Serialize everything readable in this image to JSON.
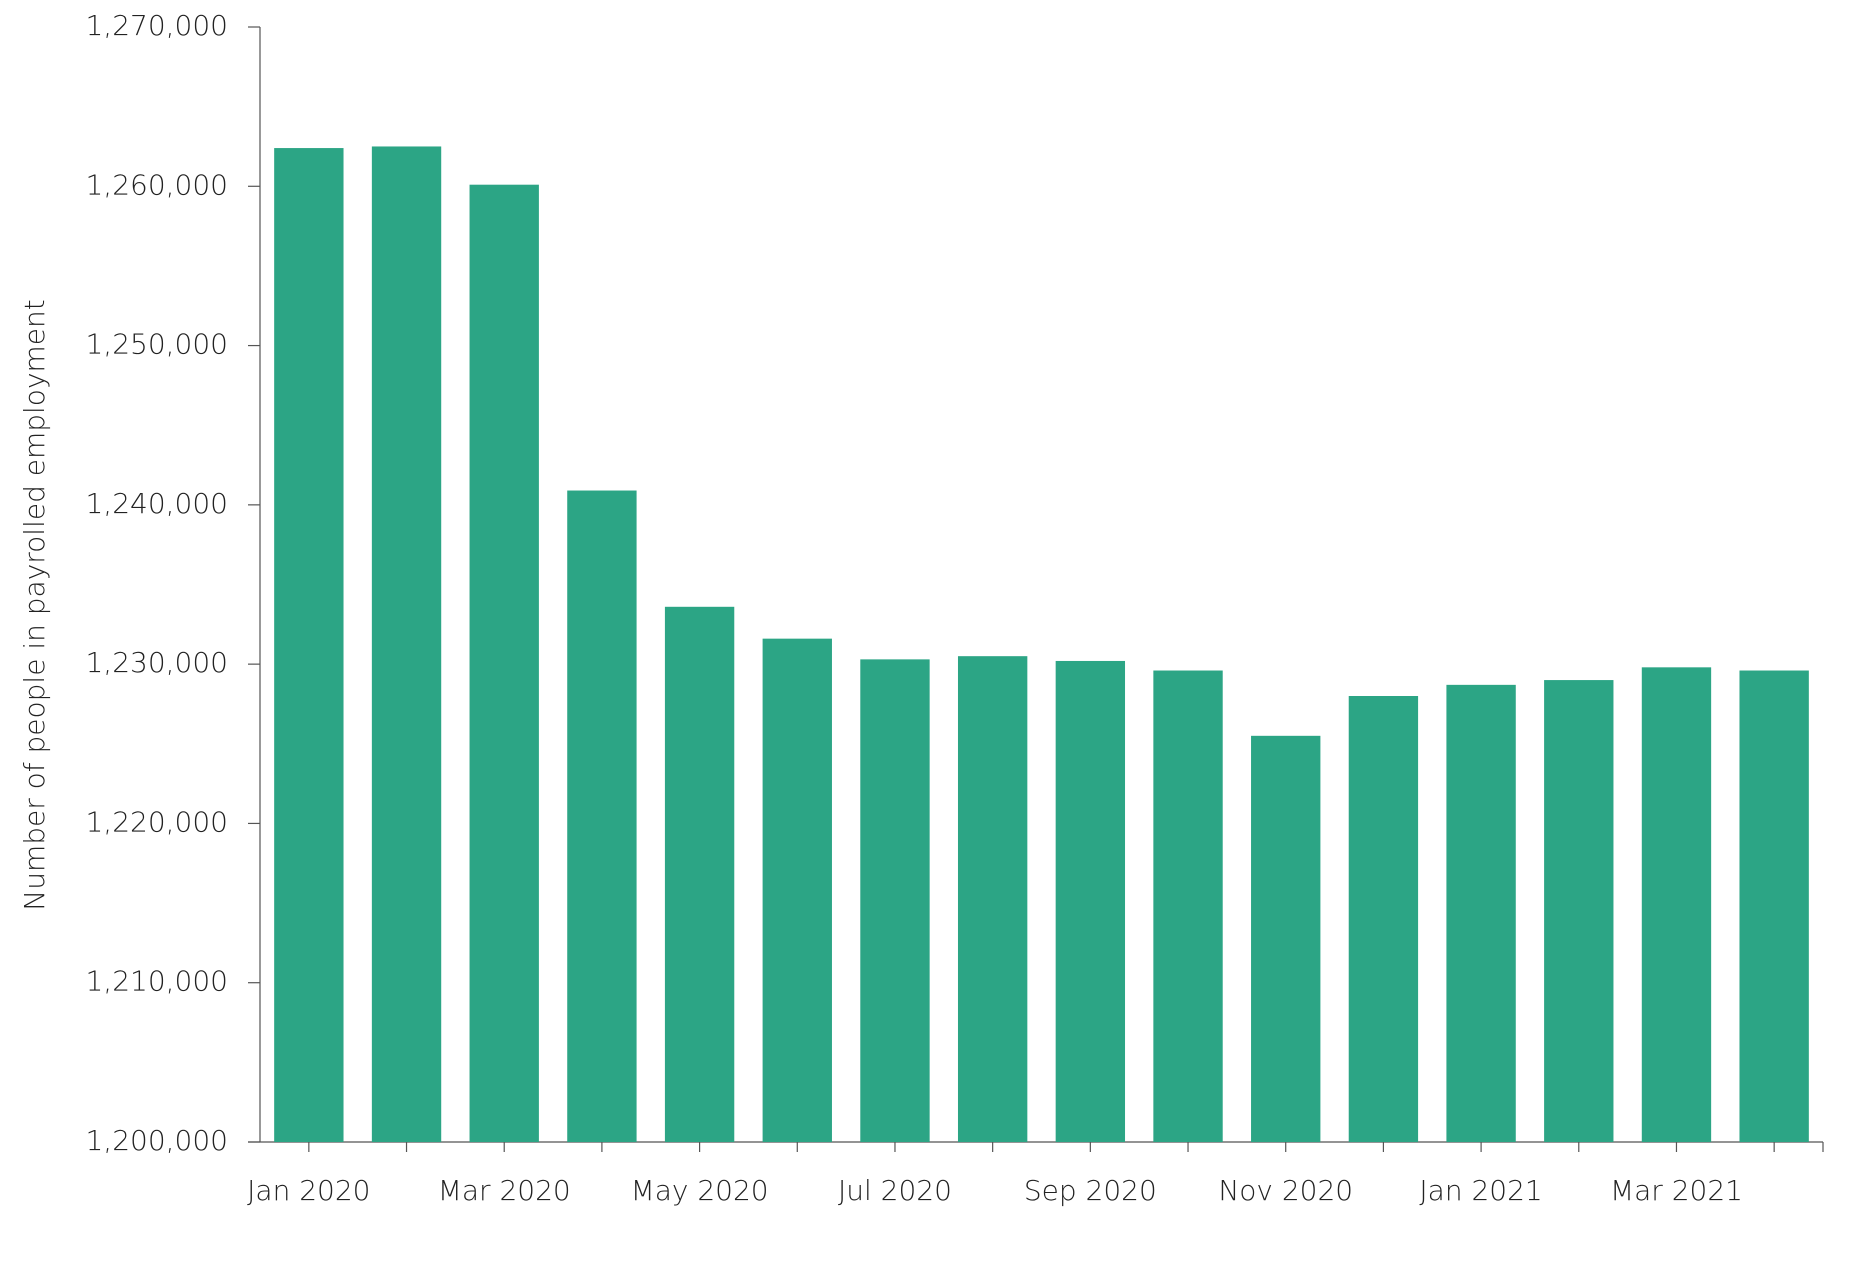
{
  "chart_data": {
    "type": "bar",
    "y_label": "Number of people in payrolled employment",
    "categories": [
      "Jan 2020",
      null,
      "Mar 2020",
      null,
      "May 2020",
      null,
      "Jul 2020",
      null,
      "Sep 2020",
      null,
      "Nov 2020",
      null,
      "Jan 2021",
      null,
      "Mar 2021",
      null
    ],
    "values": [
      1262400,
      1262500,
      1260100,
      1240900,
      1233600,
      1231600,
      1230300,
      1230500,
      1230200,
      1229600,
      1225500,
      1228000,
      1228700,
      1229000,
      1229800,
      1229600
    ],
    "color": "#2ca585",
    "ylim": [
      1200000,
      1270000
    ],
    "yticks": [
      {
        "value": 1200000,
        "label": "1,200,000"
      },
      {
        "value": 1210000,
        "label": "1,210,000"
      },
      {
        "value": 1220000,
        "label": "1,220,000"
      },
      {
        "value": 1230000,
        "label": "1,230,000"
      },
      {
        "value": 1240000,
        "label": "1,240,000"
      },
      {
        "value": 1250000,
        "label": "1,250,000"
      },
      {
        "value": 1260000,
        "label": "1,260,000"
      },
      {
        "value": 1270000,
        "label": "1,270,000"
      }
    ],
    "grid": false
  }
}
